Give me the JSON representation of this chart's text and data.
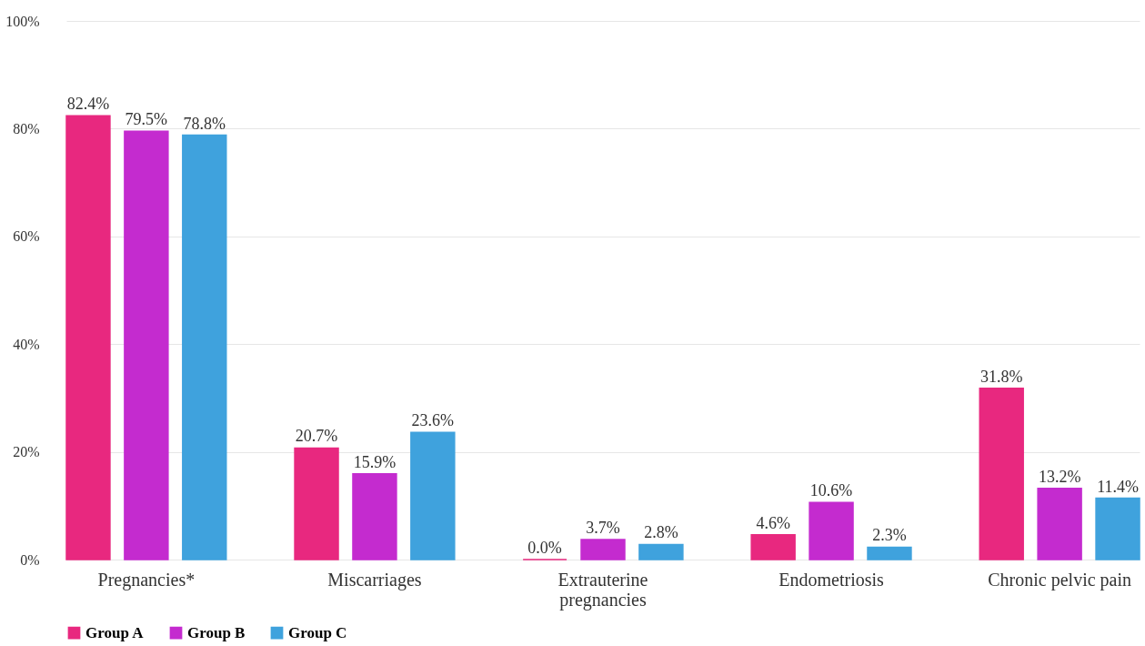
{
  "chart_data": {
    "type": "bar",
    "categories": [
      "Pregnancies*",
      "Miscarriages",
      "Extrauterine pregnancies",
      "Endometriosis",
      "Chronic pelvic pain"
    ],
    "series": [
      {
        "name": "Group A",
        "color": "#e8287f",
        "values": [
          82.4,
          20.7,
          0.0,
          4.6,
          31.8
        ],
        "value_labels": [
          "82.4%",
          "20.7%",
          "0.0%",
          "4.6%",
          "31.8%"
        ]
      },
      {
        "name": "Group B",
        "color": "#c42bcf",
        "values": [
          79.5,
          15.9,
          3.7,
          10.6,
          13.2
        ],
        "value_labels": [
          "79.5%",
          "15.9%",
          "3.7%",
          "10.6%",
          "13.2%"
        ]
      },
      {
        "name": "Group C",
        "color": "#3fa2dd",
        "values": [
          78.8,
          23.6,
          2.8,
          2.3,
          11.4
        ],
        "value_labels": [
          "78.8%",
          "23.6%",
          "2.8%",
          "2.3%",
          "11.4%"
        ]
      }
    ],
    "ylim": [
      0,
      100
    ],
    "yticks": [
      {
        "value": 0,
        "label": "0%"
      },
      {
        "value": 20,
        "label": "20%"
      },
      {
        "value": 40,
        "label": "40%"
      },
      {
        "value": 60,
        "label": "60%"
      },
      {
        "value": 80,
        "label": "80%"
      },
      {
        "value": 100,
        "label": "100%"
      }
    ],
    "grid": "y",
    "legend": "bottom"
  }
}
